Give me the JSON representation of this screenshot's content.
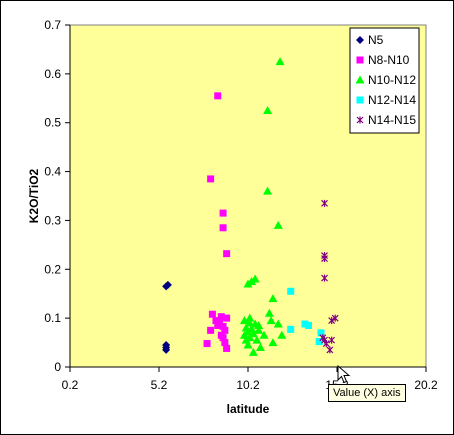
{
  "chart_data": {
    "type": "scatter",
    "title": "",
    "xlabel": "latitude",
    "ylabel": "K2O/TiO2",
    "xlim": [
      0.2,
      20.2
    ],
    "ylim": [
      0,
      0.7
    ],
    "x_ticks": [
      "0.2",
      "5.2",
      "10.2",
      "15.2",
      "20.2"
    ],
    "y_ticks": [
      "0",
      "0.1",
      "0.2",
      "0.3",
      "0.4",
      "0.5",
      "0.6",
      "0.7"
    ],
    "grid": false,
    "legend": "top-right",
    "plot_background": "#ffff99",
    "series": [
      {
        "name": "N5",
        "marker": "diamond",
        "color": "#000080",
        "points": [
          [
            5.6,
            0.165
          ],
          [
            5.7,
            0.168
          ],
          [
            5.6,
            0.045
          ],
          [
            5.6,
            0.04
          ],
          [
            5.6,
            0.035
          ]
        ]
      },
      {
        "name": "N8-N10",
        "marker": "square",
        "color": "#ff00ff",
        "points": [
          [
            8.5,
            0.555
          ],
          [
            8.1,
            0.385
          ],
          [
            8.8,
            0.315
          ],
          [
            8.8,
            0.285
          ],
          [
            9.0,
            0.232
          ],
          [
            8.2,
            0.108
          ],
          [
            8.7,
            0.103
          ],
          [
            8.6,
            0.093
          ],
          [
            9.0,
            0.1
          ],
          [
            8.4,
            0.095
          ],
          [
            8.8,
            0.083
          ],
          [
            8.1,
            0.075
          ],
          [
            8.9,
            0.075
          ],
          [
            8.7,
            0.065
          ],
          [
            8.8,
            0.06
          ],
          [
            8.9,
            0.05
          ],
          [
            7.9,
            0.048
          ],
          [
            9.0,
            0.038
          ],
          [
            8.5,
            0.085
          ]
        ]
      },
      {
        "name": "N10-N12",
        "marker": "triangle",
        "color": "#00ff00",
        "points": [
          [
            12.0,
            0.625
          ],
          [
            11.3,
            0.525
          ],
          [
            11.3,
            0.36
          ],
          [
            11.9,
            0.29
          ],
          [
            10.6,
            0.18
          ],
          [
            10.4,
            0.175
          ],
          [
            10.2,
            0.17
          ],
          [
            11.6,
            0.14
          ],
          [
            11.4,
            0.11
          ],
          [
            10.0,
            0.095
          ],
          [
            10.3,
            0.09
          ],
          [
            10.6,
            0.088
          ],
          [
            11.9,
            0.088
          ],
          [
            10.1,
            0.08
          ],
          [
            10.4,
            0.078
          ],
          [
            10.8,
            0.075
          ],
          [
            10.2,
            0.072
          ],
          [
            10.5,
            0.068
          ],
          [
            11.1,
            0.065
          ],
          [
            12.1,
            0.065
          ],
          [
            10.3,
            0.06
          ],
          [
            10.1,
            0.055
          ],
          [
            10.7,
            0.055
          ],
          [
            11.6,
            0.05
          ],
          [
            10.2,
            0.045
          ],
          [
            10.9,
            0.04
          ],
          [
            10.5,
            0.03
          ],
          [
            10.8,
            0.085
          ],
          [
            10.3,
            0.1
          ],
          [
            11.5,
            0.095
          ],
          [
            10.0,
            0.065
          ]
        ]
      },
      {
        "name": "N12-N14",
        "marker": "square",
        "color": "#00ffff",
        "points": [
          [
            12.6,
            0.155
          ],
          [
            13.4,
            0.088
          ],
          [
            13.6,
            0.085
          ],
          [
            12.6,
            0.077
          ],
          [
            14.3,
            0.07
          ],
          [
            14.2,
            0.052
          ]
        ]
      },
      {
        "name": "N14-N15",
        "marker": "cross",
        "color": "#800080",
        "points": [
          [
            14.5,
            0.335
          ],
          [
            14.5,
            0.228
          ],
          [
            14.5,
            0.222
          ],
          [
            14.5,
            0.182
          ],
          [
            15.1,
            0.1
          ],
          [
            14.9,
            0.095
          ],
          [
            14.4,
            0.06
          ],
          [
            14.5,
            0.055
          ],
          [
            14.9,
            0.055
          ],
          [
            14.6,
            0.048
          ],
          [
            14.8,
            0.035
          ]
        ]
      }
    ]
  },
  "tooltip": {
    "text": "Value (X) axis"
  }
}
